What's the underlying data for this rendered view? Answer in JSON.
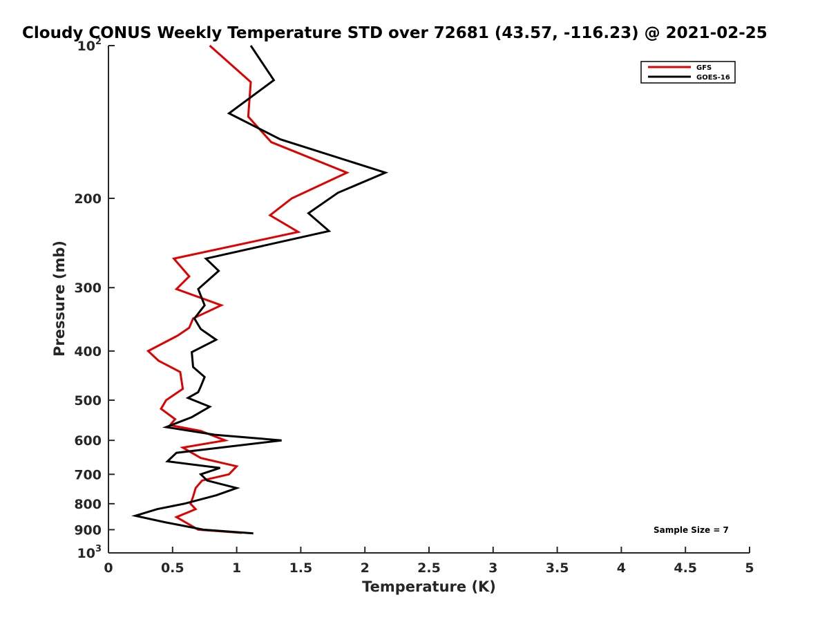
{
  "chart_data": {
    "type": "line",
    "title": "Cloudy CONUS Weekly Temperature STD over 72681 (43.57, -116.23) @ 2021-02-25",
    "xlabel": "Temperature (K)",
    "ylabel": "Pressure (mb)",
    "xlim": [
      0,
      5
    ],
    "ylim": [
      1000,
      100
    ],
    "y_scale": "log",
    "y_reversed": true,
    "x_ticks": [
      0,
      0.5,
      1,
      1.5,
      2,
      2.5,
      3,
      3.5,
      4,
      4.5,
      5
    ],
    "x_tick_labels": [
      "0",
      "0.5",
      "1",
      "1.5",
      "2",
      "2.5",
      "3",
      "3.5",
      "4",
      "4.5",
      "5"
    ],
    "y_ticks": [
      {
        "value": 100,
        "base": "10",
        "exp": "2"
      },
      {
        "value": 200,
        "label": "200"
      },
      {
        "value": 300,
        "label": "300"
      },
      {
        "value": 400,
        "label": "400"
      },
      {
        "value": 500,
        "label": "500"
      },
      {
        "value": 600,
        "label": "600"
      },
      {
        "value": 700,
        "label": "700"
      },
      {
        "value": 800,
        "label": "800"
      },
      {
        "value": 900,
        "label": "900"
      },
      {
        "value": 1000,
        "base": "10",
        "exp": "3"
      }
    ],
    "grid": false,
    "legend_position": "top-right",
    "annotation": "Sample Size = 7",
    "series": [
      {
        "name": "GFS",
        "color": "#e00000",
        "points": [
          {
            "x": 0.79,
            "p": 100
          },
          {
            "x": 1.11,
            "p": 118
          },
          {
            "x": 1.09,
            "p": 138
          },
          {
            "x": 1.27,
            "p": 155
          },
          {
            "x": 1.86,
            "p": 178
          },
          {
            "x": 1.43,
            "p": 200
          },
          {
            "x": 1.26,
            "p": 216
          },
          {
            "x": 1.48,
            "p": 233
          },
          {
            "x": 0.51,
            "p": 263
          },
          {
            "x": 0.63,
            "p": 285
          },
          {
            "x": 0.53,
            "p": 302
          },
          {
            "x": 0.88,
            "p": 325
          },
          {
            "x": 0.66,
            "p": 345
          },
          {
            "x": 0.63,
            "p": 360
          },
          {
            "x": 0.54,
            "p": 373
          },
          {
            "x": 0.31,
            "p": 400
          },
          {
            "x": 0.39,
            "p": 418
          },
          {
            "x": 0.56,
            "p": 440
          },
          {
            "x": 0.58,
            "p": 475
          },
          {
            "x": 0.45,
            "p": 500
          },
          {
            "x": 0.41,
            "p": 520
          },
          {
            "x": 0.52,
            "p": 545
          },
          {
            "x": 0.48,
            "p": 560
          },
          {
            "x": 0.72,
            "p": 575
          },
          {
            "x": 0.91,
            "p": 600
          },
          {
            "x": 0.58,
            "p": 620
          },
          {
            "x": 0.72,
            "p": 650
          },
          {
            "x": 1.0,
            "p": 675
          },
          {
            "x": 0.94,
            "p": 700
          },
          {
            "x": 0.73,
            "p": 720
          },
          {
            "x": 0.68,
            "p": 745
          },
          {
            "x": 0.66,
            "p": 775
          },
          {
            "x": 0.64,
            "p": 800
          },
          {
            "x": 0.68,
            "p": 820
          },
          {
            "x": 0.53,
            "p": 850
          },
          {
            "x": 0.7,
            "p": 900
          },
          {
            "x": 1.04,
            "p": 913
          }
        ]
      },
      {
        "name": "GOES-16",
        "color": "#000000",
        "points": [
          {
            "x": 1.11,
            "p": 100
          },
          {
            "x": 1.29,
            "p": 117
          },
          {
            "x": 0.94,
            "p": 136
          },
          {
            "x": 1.34,
            "p": 153
          },
          {
            "x": 2.16,
            "p": 178
          },
          {
            "x": 1.79,
            "p": 195
          },
          {
            "x": 1.56,
            "p": 214
          },
          {
            "x": 1.72,
            "p": 232
          },
          {
            "x": 0.76,
            "p": 263
          },
          {
            "x": 0.86,
            "p": 278
          },
          {
            "x": 0.7,
            "p": 302
          },
          {
            "x": 0.75,
            "p": 325
          },
          {
            "x": 0.67,
            "p": 345
          },
          {
            "x": 0.72,
            "p": 362
          },
          {
            "x": 0.84,
            "p": 380
          },
          {
            "x": 0.65,
            "p": 402
          },
          {
            "x": 0.66,
            "p": 430
          },
          {
            "x": 0.75,
            "p": 450
          },
          {
            "x": 0.72,
            "p": 470
          },
          {
            "x": 0.7,
            "p": 482
          },
          {
            "x": 0.62,
            "p": 495
          },
          {
            "x": 0.79,
            "p": 515
          },
          {
            "x": 0.65,
            "p": 540
          },
          {
            "x": 0.45,
            "p": 565
          },
          {
            "x": 0.83,
            "p": 585
          },
          {
            "x": 1.35,
            "p": 600
          },
          {
            "x": 0.53,
            "p": 635
          },
          {
            "x": 0.46,
            "p": 660
          },
          {
            "x": 0.87,
            "p": 680
          },
          {
            "x": 0.72,
            "p": 700
          },
          {
            "x": 0.77,
            "p": 720
          },
          {
            "x": 1.0,
            "p": 745
          },
          {
            "x": 0.84,
            "p": 770
          },
          {
            "x": 0.59,
            "p": 800
          },
          {
            "x": 0.38,
            "p": 820
          },
          {
            "x": 0.21,
            "p": 845
          },
          {
            "x": 0.44,
            "p": 870
          },
          {
            "x": 0.74,
            "p": 900
          },
          {
            "x": 1.13,
            "p": 915
          }
        ]
      }
    ]
  }
}
